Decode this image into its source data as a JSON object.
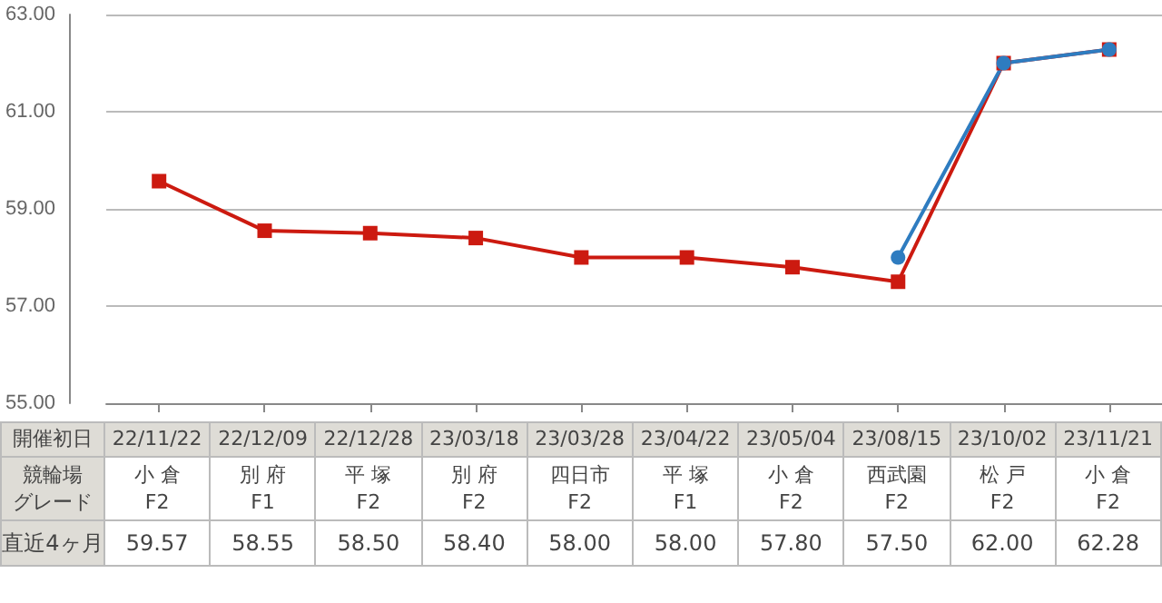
{
  "chart_data": {
    "type": "line",
    "categories": [
      "22/11/22\n小 倉\nF2",
      "22/12/09\n別 府\nF1",
      "22/12/28\n平 塚\nF2",
      "23/03/18\n別 府\nF2",
      "23/03/28\n四日市\nF2",
      "23/04/22\n平 塚\nF1",
      "23/05/04\n小 倉\nF2",
      "23/08/15\n西武園\nF2",
      "23/10/02\n松 戸\nF2",
      "23/11/21\n小 倉\nF2"
    ],
    "series": [
      {
        "color": "#cc1a10",
        "marker": "square",
        "values": [
          59.57,
          58.55,
          58.5,
          58.4,
          58.0,
          58.0,
          57.8,
          57.5,
          62.0,
          62.28
        ],
        "value_labels": [
          "59.57",
          "58.55",
          "58.50",
          "58.40",
          "58.00",
          "58.00",
          "57.80",
          "57.50",
          "62.00",
          "62.28"
        ]
      },
      {
        "color": "#2e7cc0",
        "marker": "circle",
        "values": [
          null,
          null,
          null,
          null,
          null,
          null,
          null,
          58.0,
          62.0,
          62.28
        ]
      }
    ],
    "annotations": [
      "開催初日",
      "競輪場",
      "グレード",
      "直近4ヶ月"
    ],
    "ylim": [
      55,
      63
    ],
    "yticks": [
      {
        "value": 55,
        "label": "55.00"
      },
      {
        "value": 57,
        "label": "57.00"
      },
      {
        "value": 59,
        "label": "59.00"
      },
      {
        "value": 61,
        "label": "61.00"
      },
      {
        "value": 63,
        "label": "63.00"
      }
    ],
    "grid": "y",
    "line_style": "solid"
  }
}
